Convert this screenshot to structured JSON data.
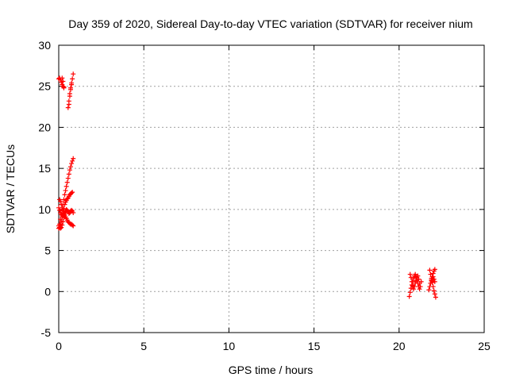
{
  "chart_data": {
    "type": "scatter",
    "title": "Day 359 of 2020, Sidereal Day-to-day VTEC variation (SDTVAR) for receiver nium",
    "xlabel": "GPS time / hours",
    "ylabel": "SDTVAR / TECUs",
    "xlim": [
      0,
      25
    ],
    "ylim": [
      -5,
      30
    ],
    "x_ticks": [
      0,
      5,
      10,
      15,
      20,
      25
    ],
    "y_ticks": [
      -5,
      0,
      5,
      10,
      15,
      20,
      25,
      30
    ],
    "grid": true,
    "legend": "none",
    "marker": "plus",
    "color": "#ff0000",
    "segments": [
      {
        "x": [
          0.0,
          0.05,
          0.1,
          0.15,
          0.2,
          0.25,
          0.3
        ],
        "y": [
          25.9,
          26.0,
          25.8,
          25.5,
          25.2,
          25.0,
          24.9
        ]
      },
      {
        "x": [
          0.2,
          0.25,
          0.3
        ],
        "y": [
          26.0,
          25.6,
          24.8
        ]
      },
      {
        "x": [
          0.55,
          0.6,
          0.65,
          0.7,
          0.75,
          0.8,
          0.85
        ],
        "y": [
          22.4,
          23.2,
          24.1,
          24.8,
          25.4,
          25.9,
          26.5
        ]
      },
      {
        "x": [
          0.6,
          0.65,
          0.7,
          0.75
        ],
        "y": [
          22.8,
          23.8,
          24.6,
          25.2
        ]
      },
      {
        "x": [
          0.0,
          0.05,
          0.1,
          0.15,
          0.2,
          0.25,
          0.3,
          0.35,
          0.4,
          0.45,
          0.5,
          0.55,
          0.6,
          0.65,
          0.7,
          0.75,
          0.8,
          0.85
        ],
        "y": [
          7.7,
          8.2,
          8.8,
          9.4,
          10.0,
          10.6,
          11.2,
          11.8,
          12.3,
          12.8,
          13.3,
          13.8,
          14.3,
          14.8,
          15.2,
          15.6,
          15.9,
          16.2
        ]
      },
      {
        "x": [
          0.0,
          0.05,
          0.1,
          0.15,
          0.2,
          0.25,
          0.3,
          0.35,
          0.4,
          0.45,
          0.5,
          0.55,
          0.6,
          0.65,
          0.7,
          0.75,
          0.8,
          0.85
        ],
        "y": [
          10.2,
          9.9,
          9.6,
          9.4,
          9.3,
          9.3,
          9.4,
          9.6,
          9.8,
          10.0,
          9.9,
          9.7,
          9.5,
          9.6,
          9.8,
          9.9,
          9.8,
          9.6
        ]
      },
      {
        "x": [
          0.1,
          0.15,
          0.2,
          0.25,
          0.3,
          0.35,
          0.4,
          0.45,
          0.5,
          0.55,
          0.6,
          0.65,
          0.7,
          0.75,
          0.8
        ],
        "y": [
          8.2,
          8.6,
          9.1,
          9.6,
          10.1,
          10.6,
          10.9,
          11.1,
          11.3,
          11.4,
          11.6,
          11.8,
          11.9,
          12.0,
          12.1
        ]
      },
      {
        "x": [
          0.05,
          0.1,
          0.15,
          0.2,
          0.25,
          0.3,
          0.35,
          0.4,
          0.45,
          0.5,
          0.55,
          0.6,
          0.65,
          0.7,
          0.75,
          0.8,
          0.85
        ],
        "y": [
          11.2,
          11.0,
          10.6,
          10.2,
          9.8,
          9.5,
          9.3,
          9.1,
          8.9,
          8.7,
          8.5,
          8.4,
          8.3,
          8.2,
          8.2,
          8.1,
          8.0
        ]
      },
      {
        "x": [
          0.0,
          0.05,
          0.1,
          0.15,
          0.2,
          0.25,
          0.3
        ],
        "y": [
          8.0,
          7.8,
          7.7,
          7.8,
          8.1,
          8.5,
          9.0
        ]
      },
      {
        "x": [
          20.6,
          20.65,
          20.7,
          20.75,
          20.8,
          20.85,
          20.9,
          20.95,
          21.0,
          21.05,
          21.1,
          21.15,
          21.2,
          21.25,
          21.3
        ],
        "y": [
          -0.6,
          -0.1,
          0.4,
          0.8,
          1.2,
          1.6,
          1.9,
          2.1,
          1.8,
          1.4,
          1.0,
          0.6,
          0.3,
          0.6,
          1.2
        ]
      },
      {
        "x": [
          20.65,
          20.7,
          20.75,
          20.8,
          20.85,
          20.9,
          20.95,
          21.0,
          21.05,
          21.1,
          21.15,
          21.2
        ],
        "y": [
          2.1,
          1.7,
          1.2,
          0.7,
          0.3,
          0.6,
          1.0,
          1.3,
          1.7,
          1.9,
          1.5,
          1.0
        ]
      },
      {
        "x": [
          21.75,
          21.8,
          21.85,
          21.9,
          21.95,
          22.0,
          22.05,
          22.1
        ],
        "y": [
          0.2,
          0.6,
          1.0,
          1.4,
          1.8,
          2.2,
          2.5,
          2.7
        ]
      },
      {
        "x": [
          21.8,
          21.85,
          21.9,
          21.95,
          22.0,
          22.05,
          22.1,
          22.15
        ],
        "y": [
          2.6,
          2.1,
          1.6,
          1.1,
          0.6,
          0.1,
          -0.3,
          -0.7
        ]
      },
      {
        "x": [
          21.85,
          21.9,
          21.95,
          22.0,
          22.05,
          22.1
        ],
        "y": [
          1.0,
          1.3,
          1.6,
          1.8,
          1.5,
          1.2
        ]
      }
    ]
  }
}
